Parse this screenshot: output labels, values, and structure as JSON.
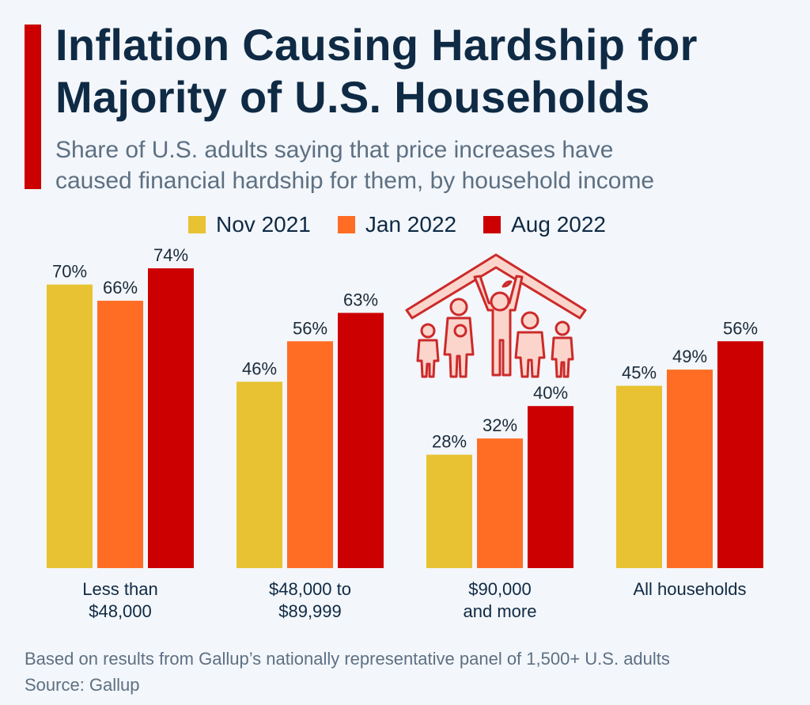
{
  "header": {
    "title_lines": [
      "Inflation Causing Hardship for",
      "Majority of U.S. Households"
    ],
    "subtitle_lines": [
      "Share of U.S. adults saying that price increases have",
      "caused financial hardship for them, by household income"
    ],
    "accent_color": "#cc0000"
  },
  "footer": {
    "note": "Based on results from Gallup’s nationally representative panel of 1,500+ U.S. adults",
    "source": "Source: Gallup"
  },
  "icons": {
    "illustration": "family-under-roof-icon"
  },
  "chart_data": {
    "type": "bar",
    "categories": [
      [
        "Less than",
        "$48,000"
      ],
      [
        "$48,000 to",
        "$89,999"
      ],
      [
        "$90,000",
        "and more"
      ],
      [
        "All households"
      ]
    ],
    "series": [
      {
        "name": "Nov 2021",
        "color": "#e8c232",
        "values": [
          70,
          46,
          28,
          45
        ],
        "labels": [
          "70%",
          "46%",
          "28%",
          "45%"
        ]
      },
      {
        "name": "Jan 2022",
        "color": "#ff6d24",
        "values": [
          66,
          56,
          32,
          49
        ],
        "labels": [
          "66%",
          "56%",
          "32%",
          "49%"
        ]
      },
      {
        "name": "Aug 2022",
        "color": "#cc0000",
        "values": [
          74,
          63,
          40,
          56
        ],
        "labels": [
          "74%",
          "63%",
          "40%",
          "56%"
        ]
      }
    ],
    "ylim": [
      0,
      100
    ],
    "unit": "%",
    "grid": false,
    "legend_position": "top"
  }
}
